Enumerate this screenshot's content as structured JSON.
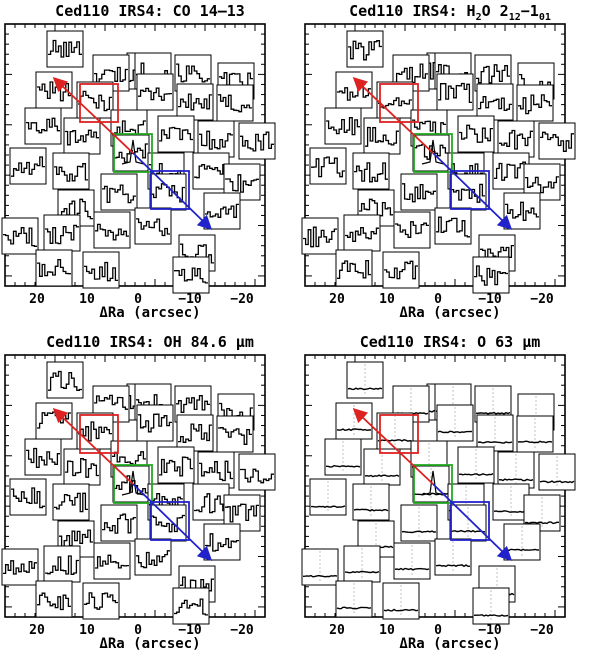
{
  "figure": {
    "panels": [
      {
        "id": "co",
        "title_main": "Ced110 IRS4: CO 14–13",
        "title_sub": "",
        "title_tail": "",
        "line_style": "noisy",
        "xlabel": "ΔRa (arcsec)",
        "xticks": [
          "20",
          "10",
          "0",
          "−10",
          "−20"
        ]
      },
      {
        "id": "h2o",
        "title_main": "Ced110 IRS4:  H",
        "title_sub": "2",
        "title_tail": "O 2",
        "title_sub2": "12",
        "title_tail2": "−1",
        "title_sub3": "01",
        "line_style": "noisy",
        "xlabel": "ΔRa (arcsec)",
        "xticks": [
          "20",
          "10",
          "0",
          "−10",
          "−20"
        ]
      },
      {
        "id": "oh",
        "title_main": "Ced110 IRS4: OH 84.6 μm",
        "line_style": "noisy",
        "xlabel": "ΔRa (arcsec)",
        "xticks": [
          "20",
          "10",
          "0",
          "−10",
          "−20"
        ]
      },
      {
        "id": "o",
        "title_main": "Ced110 IRS4: O 63 μm",
        "line_style": "smooth",
        "xlabel": "ΔRa (arcsec)",
        "xticks": [
          "20",
          "10",
          "0",
          "−10",
          "−20"
        ]
      }
    ],
    "colors": {
      "red": "#dd2222",
      "green": "#22aa22",
      "blue": "#2222cc",
      "axis": "#000000"
    }
  }
}
